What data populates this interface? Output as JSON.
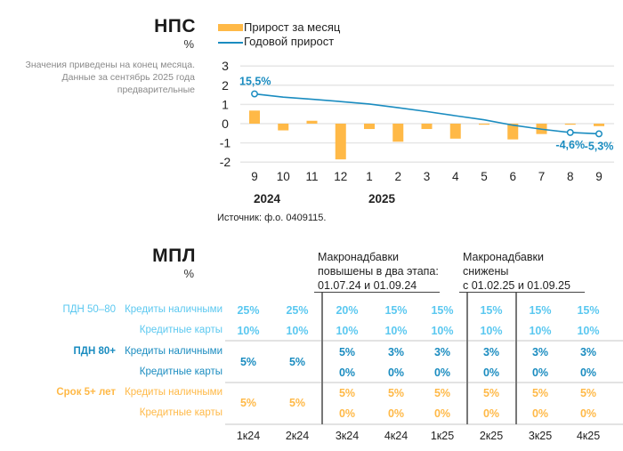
{
  "nps": {
    "title": "НПС",
    "unit": "%",
    "note_lines": [
      "Значения приведены на конец месяца.",
      "Данные за сентябрь 2025 года",
      "предварительные"
    ],
    "source": "Источник: ф.о. 0409115.",
    "year_labels": [
      "2024",
      "2025"
    ]
  },
  "chart_data": {
    "type": "bar",
    "title": "НПС",
    "ylabel": "%",
    "xlabel": "",
    "ylim": [
      -2,
      3
    ],
    "yticks": [
      3,
      2,
      1,
      0,
      -1,
      -2
    ],
    "grid": true,
    "legend_position": "top",
    "categories": [
      "9",
      "10",
      "11",
      "12",
      "1",
      "2",
      "3",
      "4",
      "5",
      "6",
      "7",
      "8",
      "9"
    ],
    "years": [
      {
        "label": "2024",
        "start_index": 0
      },
      {
        "label": "2025",
        "start_index": 4
      }
    ],
    "series": [
      {
        "name": "Прирост за месяц",
        "type": "bar",
        "color": "#ffb947",
        "values": [
          0.68,
          -0.35,
          0.15,
          -1.86,
          -0.28,
          -0.94,
          -0.28,
          -0.78,
          -0.03,
          -0.82,
          -0.54,
          -0.05,
          -0.13
        ]
      },
      {
        "name": "Годовой прирост",
        "type": "line",
        "color": "#1a8cc0",
        "scale_note": "plotted at value/10 on same axis",
        "values": [
          15.5,
          13.8,
          12.7,
          11.5,
          10.2,
          8.3,
          6.3,
          4.1,
          2.0,
          -0.8,
          -2.9,
          -4.6,
          -5.3
        ],
        "labeled_points": [
          {
            "index": 0,
            "label": "15,5%"
          },
          {
            "index": 11,
            "label": "-4,6%"
          },
          {
            "index": 12,
            "label": "-5,3%"
          }
        ]
      }
    ]
  },
  "mpl": {
    "title": "МПЛ",
    "unit": "%",
    "headers": [
      {
        "lines": [
          "Макронадбавки",
          "повышены в два этапа:",
          "01.07.24 и 01.09.24"
        ]
      },
      {
        "lines": [
          "Макронадбавки",
          "снижены",
          "с 01.02.25 и 01.09.25"
        ]
      }
    ],
    "quarters": [
      "1к24",
      "2к24",
      "3к24",
      "4к24",
      "1к25",
      "2к25",
      "3к25",
      "4к25"
    ],
    "groups": [
      {
        "label": "ПДН 50–80",
        "color": "#5bc8f0",
        "rows": [
          {
            "label": "Кредиты наличными",
            "values": [
              "25%",
              "25%",
              "20%",
              "15%",
              "15%",
              "15%",
              "15%",
              "15%"
            ]
          },
          {
            "label": "Кредитные карты",
            "values": [
              "10%",
              "10%",
              "10%",
              "10%",
              "10%",
              "10%",
              "10%",
              "10%"
            ]
          }
        ]
      },
      {
        "label": "ПДН 80+",
        "color": "#1a8cc0",
        "merged_first_two": "5%",
        "rows": [
          {
            "label": "Кредиты наличными",
            "values": [
              "5%",
              "5%",
              "5%",
              "3%",
              "3%",
              "3%",
              "3%",
              "3%"
            ]
          },
          {
            "label": "Кредитные карты",
            "values": [
              "5%",
              "5%",
              "0%",
              "0%",
              "0%",
              "0%",
              "0%",
              "0%"
            ]
          }
        ]
      },
      {
        "label": "Срок 5+ лет",
        "color": "#ffb947",
        "merged_first_two": "5%",
        "rows": [
          {
            "label": "Кредиты наличными",
            "values": [
              "5%",
              "5%",
              "5%",
              "5%",
              "5%",
              "5%",
              "5%",
              "5%"
            ]
          },
          {
            "label": "Кредитные карты",
            "values": [
              "5%",
              "5%",
              "0%",
              "0%",
              "0%",
              "0%",
              "0%",
              "0%"
            ]
          }
        ]
      }
    ]
  }
}
